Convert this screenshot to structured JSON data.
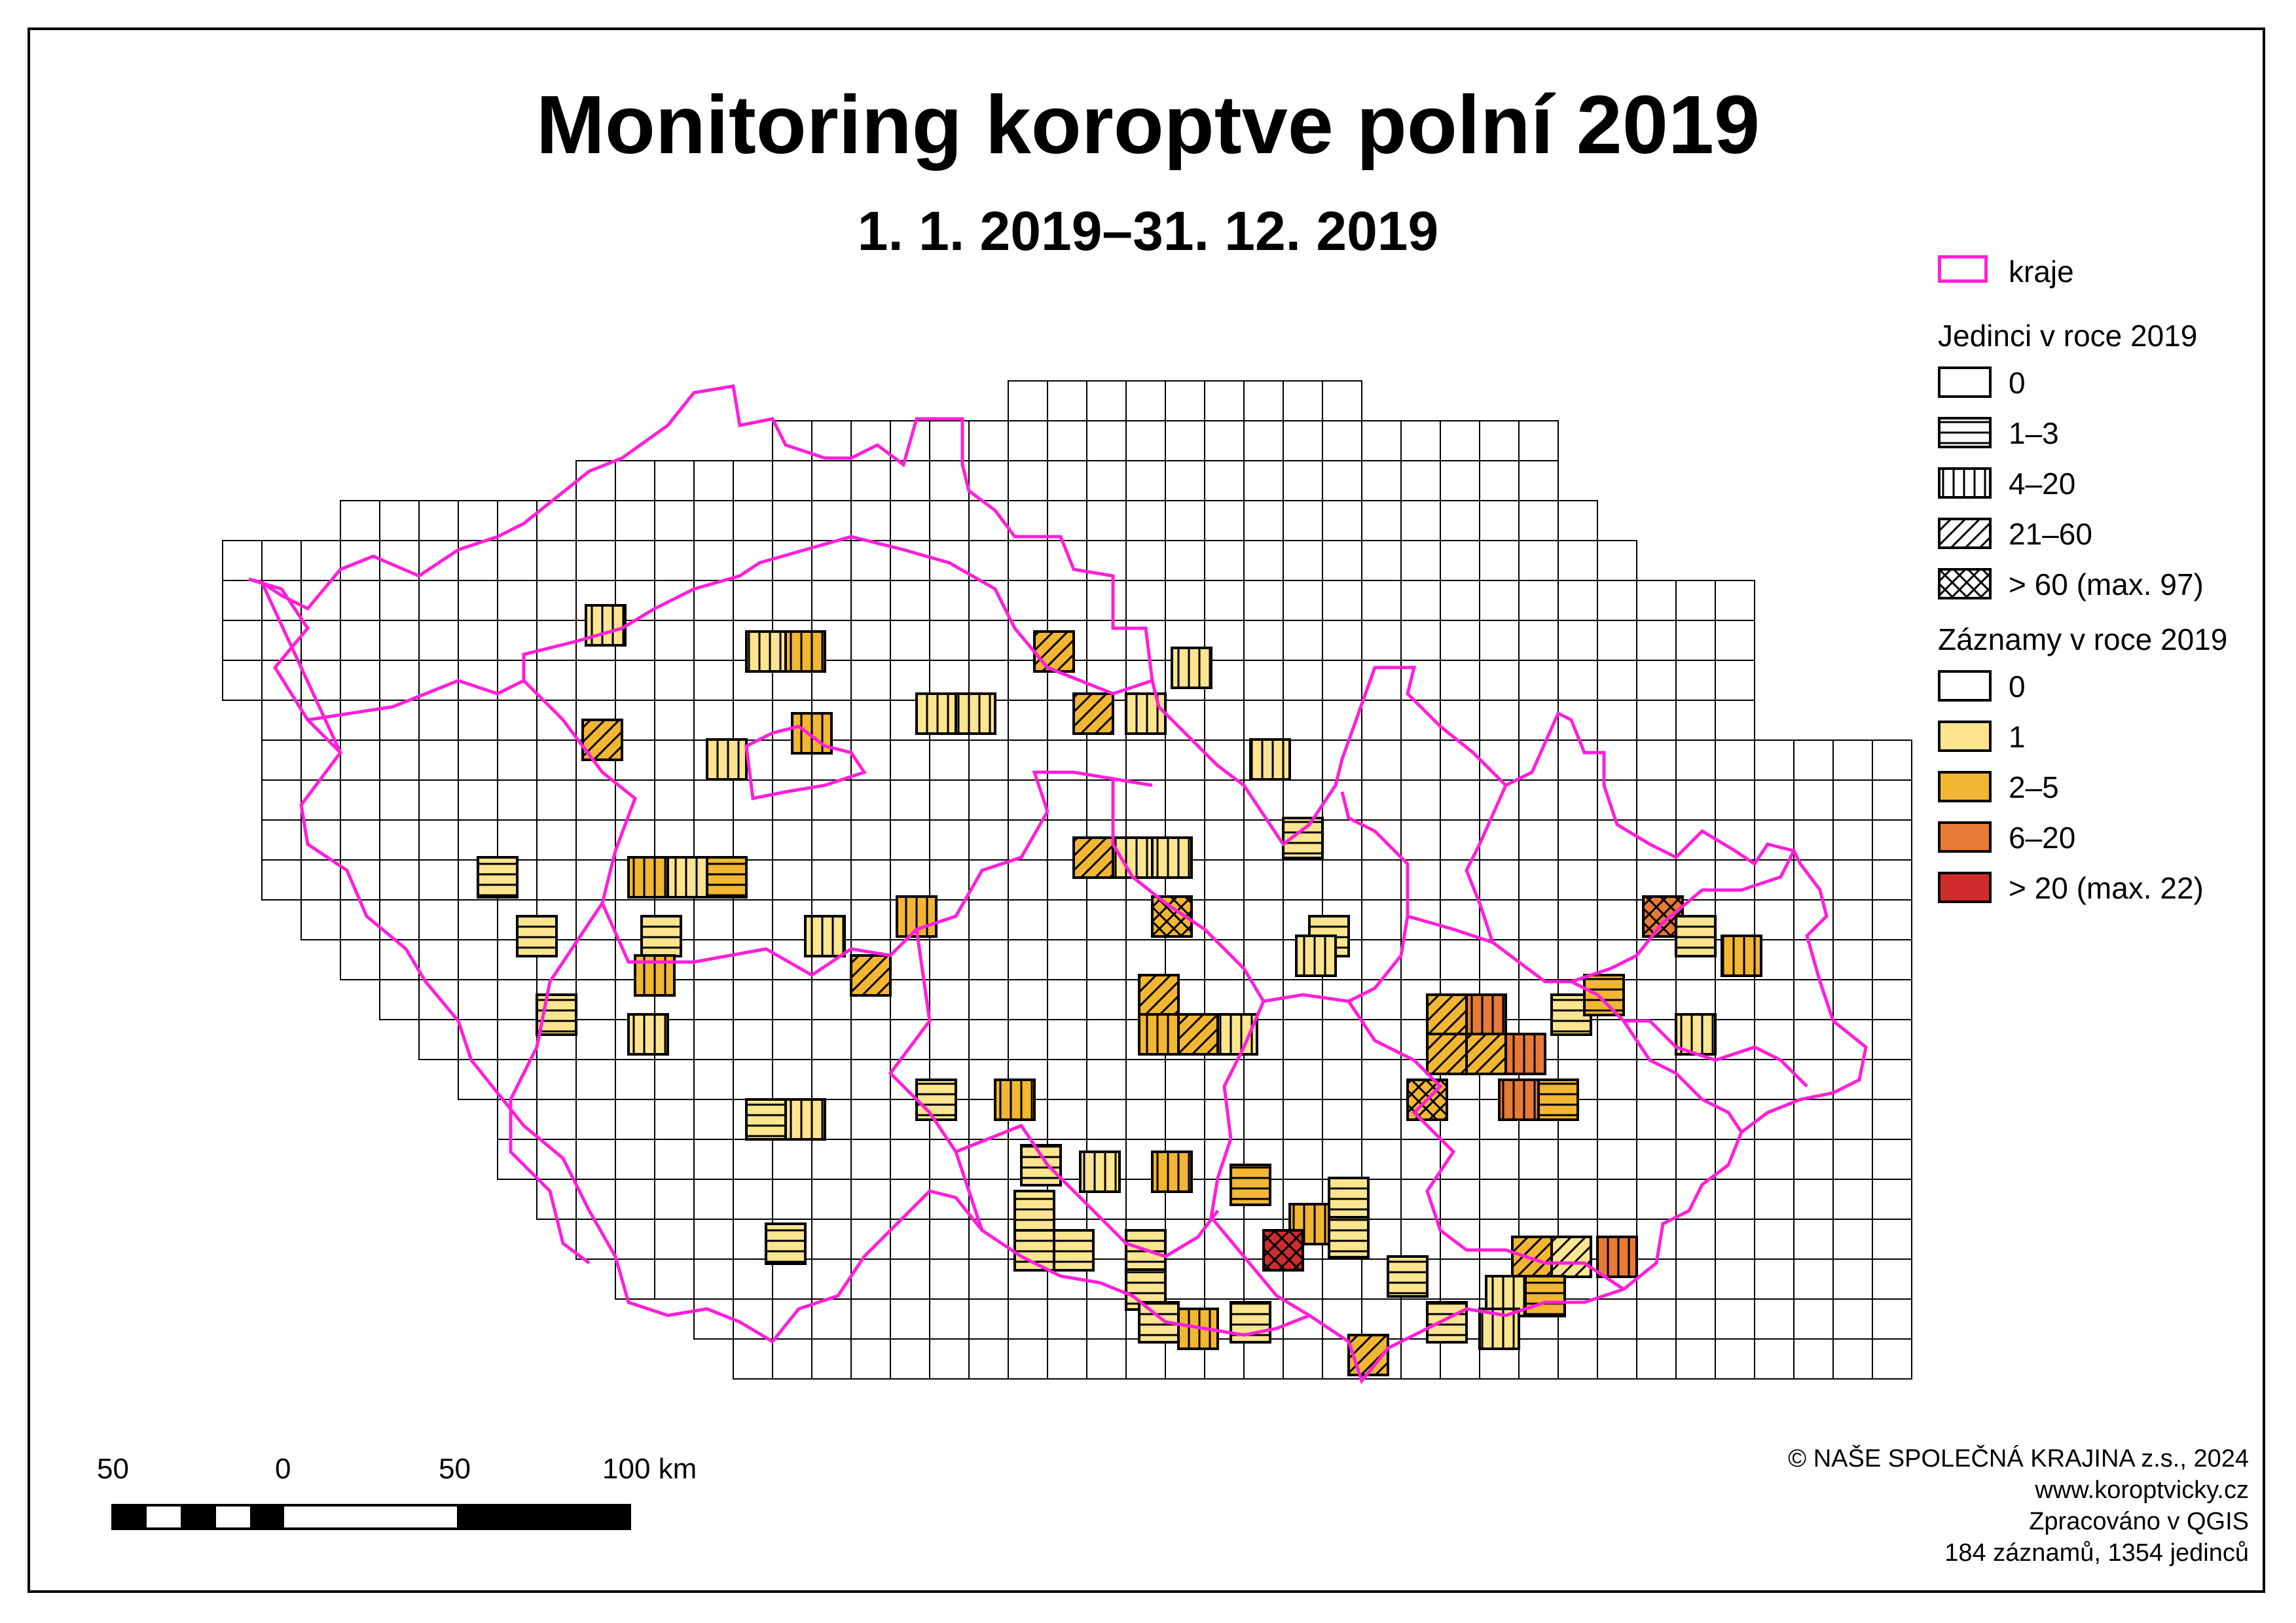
{
  "title": "Monitoring koroptve polní 2019",
  "subtitle": "1. 1. 2019–31. 12. 2019",
  "legend": {
    "boundary_label": "kraje",
    "boundary_color": "#ff1fd8",
    "individuals_heading": "Jedinci v roce 2019",
    "individuals": [
      {
        "label": "0",
        "pattern": "none"
      },
      {
        "label": "1–3",
        "pattern": "horizontal"
      },
      {
        "label": "4–20",
        "pattern": "vertical"
      },
      {
        "label": "21–60",
        "pattern": "diagonal"
      },
      {
        "label": "> 60 (max. 97)",
        "pattern": "cross"
      }
    ],
    "records_heading": "Záznamy v roce 2019",
    "records": [
      {
        "label": "0",
        "color": "#ffffff"
      },
      {
        "label": "1",
        "color": "#fde58f"
      },
      {
        "label": "2–5",
        "color": "#f2b632"
      },
      {
        "label": "6–20",
        "color": "#e77a35"
      },
      {
        "label": "> 20 (max. 22)",
        "color": "#d02c2c"
      }
    ]
  },
  "scale_bar": {
    "labels": [
      "50",
      "0",
      "50",
      "100 km"
    ]
  },
  "credits": [
    "© NAŠE SPOLEČNÁ KRAJINA z.s., 2024",
    "www.koroptvicky.cz",
    "Zpracováno v QGIS",
    "184 záznamů, 1354 jedinců"
  ],
  "map_cells": {
    "note": "",
    "occupied": [
      {
        "c": 0,
        "r": 0,
        "rec": 2,
        "ind": 3
      },
      {
        "c": 4,
        "r": 0,
        "rec": 1,
        "ind": 3
      },
      {
        "c": 5,
        "r": 0,
        "rec": 1,
        "ind": 2
      },
      {
        "c": 8,
        "r": 0,
        "rec": 2,
        "ind": 2
      },
      {
        "c": 9,
        "r": 0,
        "rec": 1,
        "ind": 2
      },
      {
        "c": 14,
        "r": 0,
        "rec": 1,
        "ind": 2
      },
      {
        "c": 0,
        "r": 2,
        "rec": 2,
        "ind": 3
      },
      {
        "c": 3,
        "r": 2,
        "rec": 2,
        "ind": 2
      },
      {
        "c": 5,
        "r": 2,
        "rec": 2,
        "ind": 3
      },
      {
        "c": 8,
        "r": 2,
        "rec": 1,
        "ind": 2
      },
      {
        "c": 9,
        "r": 2,
        "rec": 1,
        "ind": 2
      },
      {
        "c": 13,
        "r": 2,
        "rec": 2,
        "ind": 3
      },
      {
        "c": 16,
        "r": 2,
        "rec": 1,
        "ind": 1
      }
    ]
  }
}
